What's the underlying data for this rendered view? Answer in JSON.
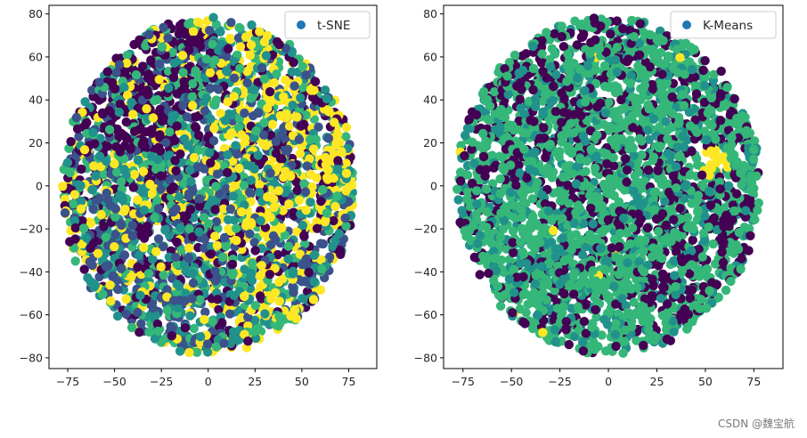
{
  "chart_data": [
    {
      "type": "scatter",
      "legend": {
        "label": "t-SNE",
        "placement": "top-right",
        "marker_color": "#1f77b4"
      },
      "xlim": [
        -85,
        90
      ],
      "ylim": [
        -85,
        84
      ],
      "xticks": [
        -75,
        -50,
        -25,
        0,
        25,
        50,
        75
      ],
      "yticks": [
        -80,
        -60,
        -40,
        -20,
        0,
        20,
        40,
        60,
        80
      ],
      "xtick_labels": [
        "−75",
        "−50",
        "−25",
        "0",
        "25",
        "50",
        "75"
      ],
      "ytick_labels": [
        "−80",
        "−60",
        "−40",
        "−20",
        "0",
        "20",
        "40",
        "60",
        "80"
      ],
      "point_cloud": {
        "shape": "disc",
        "center": [
          0,
          0
        ],
        "radius": 78,
        "approx_points": 3000
      },
      "color_classes": [
        "#440154",
        "#3b528b",
        "#21918c",
        "#35b779",
        "#fde725"
      ],
      "class_regions": "mixed; dark purple denser upper-left, yellow denser right side"
    },
    {
      "type": "scatter",
      "legend": {
        "label": "K-Means",
        "placement": "top-right",
        "marker_color": "#1f77b4"
      },
      "xlim": [
        -85,
        90
      ],
      "ylim": [
        -85,
        84
      ],
      "xticks": [
        -75,
        -50,
        -25,
        0,
        25,
        50,
        75
      ],
      "yticks": [
        -80,
        -60,
        -40,
        -20,
        0,
        20,
        40,
        60,
        80
      ],
      "xtick_labels": [
        "−75",
        "−50",
        "−25",
        "0",
        "25",
        "50",
        "75"
      ],
      "ytick_labels": [
        "−80",
        "−60",
        "−40",
        "−20",
        "0",
        "20",
        "40",
        "60",
        "80"
      ],
      "point_cloud": {
        "shape": "disc",
        "center": [
          0,
          0
        ],
        "radius": 78,
        "approx_points": 3000
      },
      "color_classes": [
        "#440154",
        "#21918c",
        "#35b779",
        "#fde725"
      ],
      "class_regions": "mostly green with scattered dark purple; small yellow cluster near (55, 12)"
    }
  ],
  "watermark": "CSDN @魏宝航"
}
